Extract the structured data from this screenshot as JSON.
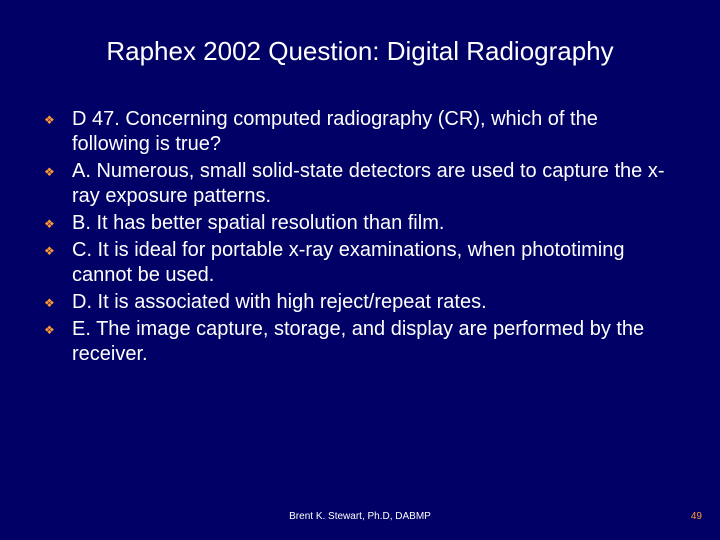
{
  "slide": {
    "background_color": "#000066",
    "text_color": "#ffffff",
    "accent_color": "#ff9933",
    "title_fontsize": 26,
    "body_fontsize": 20,
    "footer_fontsize": 10,
    "bullet_glyph": "❖"
  },
  "title": "Raphex 2002 Question: Digital Radiography",
  "items": [
    "D 47. Concerning computed radiography (CR), which of the following is true?",
    "A. Numerous, small solid-state detectors are used to capture the x-ray exposure patterns.",
    "B. It has better spatial resolution than film.",
    "C. It is ideal for portable x-ray examinations, when phototiming cannot be used.",
    "D. It is associated with high reject/repeat rates.",
    "E. The image capture, storage, and display are performed by the receiver."
  ],
  "footer": "Brent K. Stewart, Ph.D, DABMP",
  "page_number": "49"
}
